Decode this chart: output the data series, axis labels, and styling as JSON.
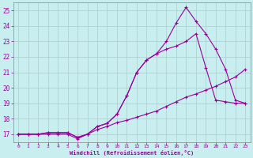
{
  "xlabel": "Windchill (Refroidissement éolien,°C)",
  "bg_color": "#c8eef0",
  "grid_color": "#aacccc",
  "line_color": "#990099",
  "xlim": [
    -0.5,
    23.5
  ],
  "ylim": [
    16.5,
    25.5
  ],
  "yticks": [
    17,
    18,
    19,
    20,
    21,
    22,
    23,
    24,
    25
  ],
  "xticks": [
    0,
    1,
    2,
    3,
    4,
    5,
    6,
    7,
    8,
    9,
    10,
    11,
    12,
    13,
    14,
    15,
    16,
    17,
    18,
    19,
    20,
    21,
    22,
    23
  ],
  "line1_x": [
    0,
    1,
    2,
    3,
    4,
    5,
    6,
    7,
    8,
    9,
    10,
    11,
    12,
    13,
    14,
    15,
    16,
    17,
    18,
    19,
    20,
    21,
    22,
    23
  ],
  "line1_y": [
    17.0,
    17.0,
    17.0,
    17.0,
    17.0,
    17.0,
    16.7,
    17.0,
    17.3,
    17.5,
    17.75,
    17.9,
    18.1,
    18.3,
    18.5,
    18.8,
    19.1,
    19.4,
    19.6,
    19.85,
    20.1,
    20.4,
    20.7,
    21.2
  ],
  "line2_x": [
    0,
    1,
    2,
    3,
    4,
    5,
    6,
    7,
    8,
    9,
    10,
    11,
    12,
    13,
    14,
    15,
    16,
    17,
    18,
    19,
    20,
    21,
    22,
    23
  ],
  "line2_y": [
    17.0,
    17.0,
    17.0,
    17.1,
    17.1,
    17.1,
    16.8,
    17.0,
    17.5,
    17.7,
    18.3,
    19.5,
    21.0,
    21.8,
    22.2,
    22.5,
    22.7,
    23.0,
    23.5,
    21.3,
    19.2,
    19.1,
    19.0,
    19.0
  ],
  "line3_x": [
    0,
    1,
    2,
    3,
    4,
    5,
    6,
    7,
    8,
    9,
    10,
    11,
    12,
    13,
    14,
    15,
    16,
    17,
    18,
    19,
    20,
    21,
    22,
    23
  ],
  "line3_y": [
    17.0,
    17.0,
    17.0,
    17.1,
    17.1,
    17.1,
    16.8,
    17.0,
    17.5,
    17.7,
    18.3,
    19.5,
    21.0,
    21.8,
    22.2,
    23.0,
    24.2,
    25.2,
    24.3,
    23.5,
    22.5,
    21.2,
    19.2,
    19.0
  ]
}
